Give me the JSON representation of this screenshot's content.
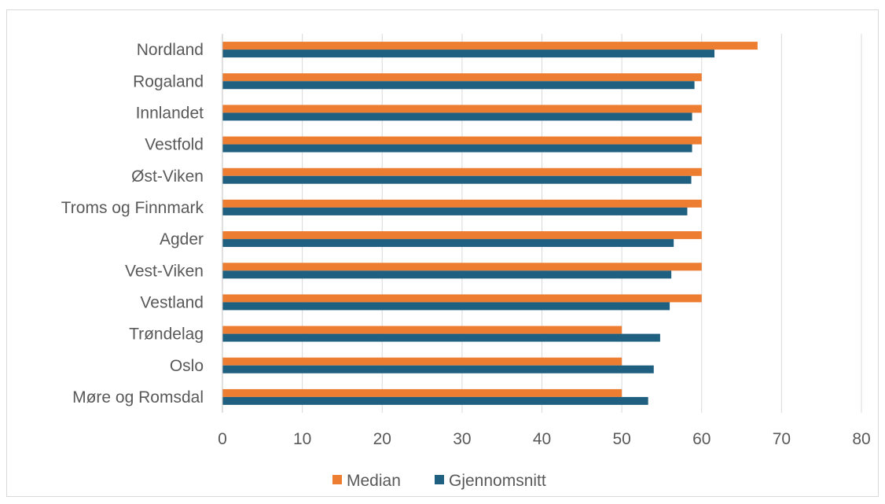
{
  "chart_data": {
    "type": "bar",
    "orientation": "horizontal",
    "categories": [
      "Nordland",
      "Rogaland",
      "Innlandet",
      "Vestfold",
      "Øst-Viken",
      "Troms og Finnmark",
      "Agder",
      "Vest-Viken",
      "Vestland",
      "Trøndelag",
      "Oslo",
      "Møre og Romsdal"
    ],
    "series": [
      {
        "name": "Median",
        "color": "#ed7d31",
        "values": [
          67,
          60,
          60,
          60,
          60,
          60,
          60,
          60,
          60,
          50,
          50,
          50
        ]
      },
      {
        "name": "Gjennomsnitt",
        "color": "#1f5f7f",
        "values": [
          61.6,
          59.1,
          58.8,
          58.8,
          58.7,
          58.2,
          56.5,
          56.2,
          56.0,
          54.8,
          54.0,
          53.3
        ]
      }
    ],
    "xlim": [
      0,
      80
    ],
    "xticks": [
      "0",
      "10",
      "20",
      "30",
      "40",
      "50",
      "60",
      "70",
      "80"
    ],
    "grid": true,
    "legend_position": "bottom",
    "title": "",
    "xlabel": "",
    "ylabel": ""
  }
}
